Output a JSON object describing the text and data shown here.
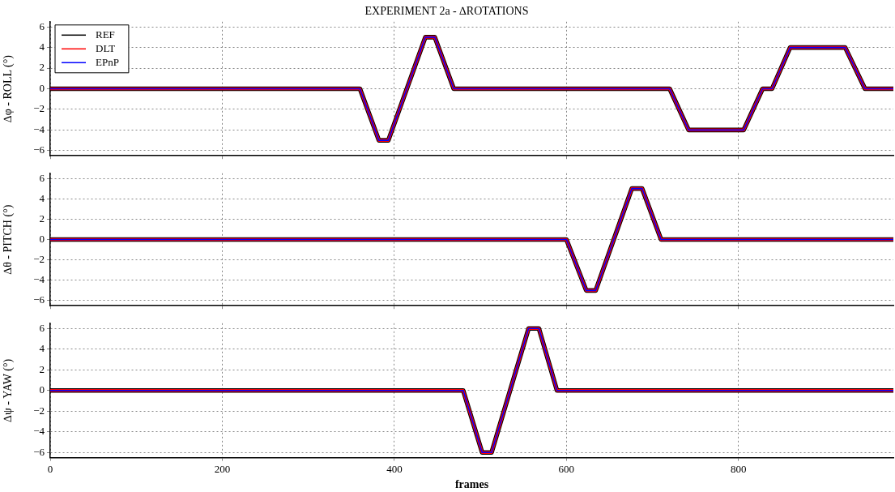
{
  "chart_data": [
    {
      "type": "line",
      "title": "EXPERIMENT 2a - ∆ROTATIONS",
      "ylabel": "∆φ - ROLL (°)",
      "legend": "top left",
      "grid": true,
      "line_style": "solid",
      "marker": "none",
      "tick_labels": "y",
      "xlim": [
        0,
        980
      ],
      "xticks": [
        0,
        200,
        400,
        600,
        800
      ],
      "ylim": [
        -6.5,
        6.5
      ],
      "yticks": [
        {
          "value": -6,
          "label": "−6"
        },
        {
          "value": -4,
          "label": "−4"
        },
        {
          "value": -2,
          "label": "−2"
        },
        0,
        2,
        4,
        6
      ],
      "series": [
        {
          "name": "REF",
          "color": "#000000",
          "x": [
            0,
            360,
            382,
            393,
            436,
            447,
            469,
            720,
            742,
            806,
            828,
            839,
            860,
            924,
            947,
            980
          ],
          "values": [
            0,
            0,
            -5,
            -5,
            5,
            5,
            0,
            0,
            -4,
            -4,
            0,
            0,
            4,
            4,
            0,
            0
          ]
        },
        {
          "name": "DLT",
          "color": "#ff0000",
          "x": [
            0,
            360,
            382,
            393,
            436,
            447,
            469,
            720,
            742,
            806,
            828,
            839,
            860,
            924,
            947,
            980
          ],
          "values": [
            0,
            0,
            -5,
            -5,
            5,
            5,
            0,
            0,
            -4,
            -4,
            0,
            0,
            4,
            4,
            0,
            0
          ]
        },
        {
          "name": "EPnP",
          "color": "#0000ff",
          "x": [
            0,
            360,
            382,
            393,
            436,
            447,
            469,
            720,
            742,
            806,
            828,
            839,
            860,
            924,
            947,
            980
          ],
          "values": [
            0,
            0,
            -5,
            -5,
            5,
            5,
            0,
            0,
            -4,
            -4,
            0,
            0,
            4,
            4,
            0,
            0
          ]
        }
      ]
    },
    {
      "type": "line",
      "ylabel": "∆θ - PITCH (°)",
      "grid": true,
      "line_style": "solid",
      "marker": "none",
      "tick_labels": "y",
      "xlim": [
        0,
        980
      ],
      "xticks": [
        0,
        200,
        400,
        600,
        800
      ],
      "ylim": [
        -6.5,
        6.5
      ],
      "yticks": [
        {
          "value": -6,
          "label": "−6"
        },
        {
          "value": -4,
          "label": "−4"
        },
        {
          "value": -2,
          "label": "−2"
        },
        0,
        2,
        4,
        6
      ],
      "series": [
        {
          "color": "#000000",
          "x": [
            0,
            600,
            623,
            634,
            676,
            688,
            710,
            980
          ],
          "values": [
            0,
            0,
            -5,
            -5,
            5,
            5,
            0,
            0
          ]
        },
        {
          "color": "#ff0000",
          "x": [
            0,
            600,
            623,
            634,
            676,
            688,
            710,
            980
          ],
          "values": [
            0,
            0,
            -5,
            -5,
            5,
            5,
            0,
            0
          ]
        },
        {
          "color": "#0000ff",
          "x": [
            0,
            600,
            623,
            634,
            676,
            688,
            710,
            980
          ],
          "values": [
            0,
            0,
            -5,
            -5,
            5,
            5,
            0,
            0
          ]
        }
      ]
    },
    {
      "type": "line",
      "ylabel": "∆ψ - YAW (°)",
      "xlabel": "frames",
      "grid": true,
      "line_style": "solid",
      "marker": "none",
      "xlim": [
        0,
        980
      ],
      "xticks": [
        0,
        200,
        400,
        600,
        800
      ],
      "ylim": [
        -6.5,
        6.5
      ],
      "yticks": [
        {
          "value": -6,
          "label": "−6"
        },
        {
          "value": -4,
          "label": "−4"
        },
        {
          "value": -2,
          "label": "−2"
        },
        0,
        2,
        4,
        6
      ],
      "series": [
        {
          "color": "#000000",
          "x": [
            0,
            480,
            502,
            513,
            556,
            568,
            589,
            980
          ],
          "values": [
            0,
            0,
            -6,
            -6,
            6,
            6,
            0,
            0
          ]
        },
        {
          "color": "#ff0000",
          "x": [
            0,
            480,
            502,
            513,
            556,
            568,
            589,
            980
          ],
          "values": [
            0,
            0,
            -6,
            -6,
            6,
            6,
            0,
            0
          ]
        },
        {
          "color": "#0000ff",
          "x": [
            0,
            480,
            502,
            513,
            556,
            568,
            589,
            980
          ],
          "values": [
            0,
            0,
            -6,
            -6,
            6,
            6,
            0,
            0
          ]
        }
      ]
    }
  ]
}
